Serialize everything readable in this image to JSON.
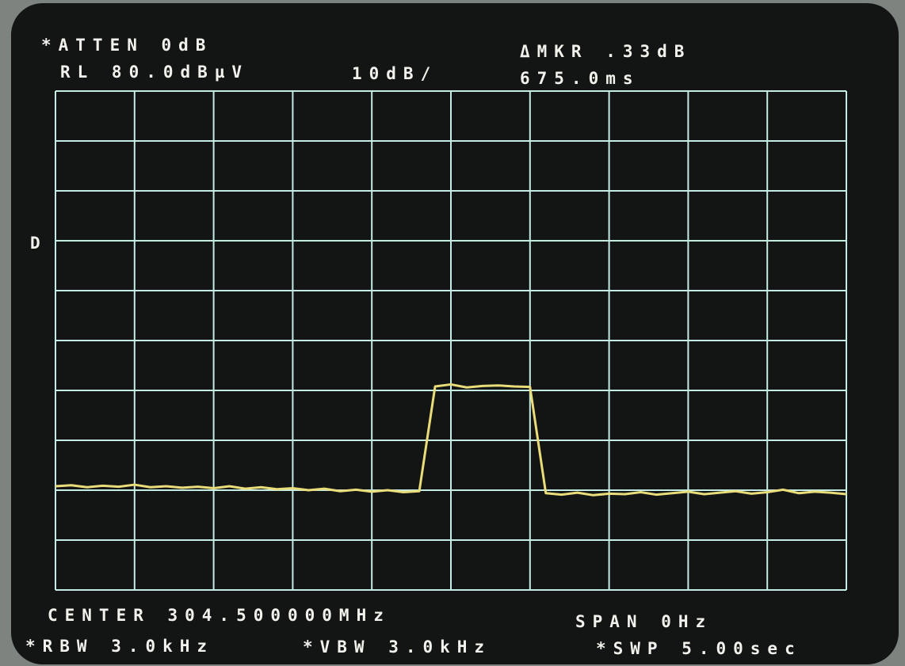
{
  "chart_data": {
    "type": "line",
    "header": {
      "atten": "*ATTEN 0dB",
      "ref_level": "RL 80.0dBµV",
      "scale": "10dB/",
      "marker": "ΔMKR .33dB",
      "marker_time": "675.0ms",
      "detector": "D"
    },
    "footer": {
      "center": "CENTER 304.500000MHz",
      "span": "SPAN 0Hz",
      "rbw": "*RBW 3.0kHz",
      "vbw": "*VBW 3.0kHz",
      "sweep": "*SWP 5.00sec"
    },
    "x": [
      0,
      0.1,
      0.2,
      0.3,
      0.4,
      0.5,
      0.6,
      0.7,
      0.8,
      0.9,
      1.0,
      1.1,
      1.2,
      1.3,
      1.4,
      1.5,
      1.6,
      1.7,
      1.8,
      1.9,
      2.0,
      2.1,
      2.2,
      2.3,
      2.4,
      2.5,
      2.6,
      2.7,
      2.8,
      2.9,
      3.0,
      3.1,
      3.2,
      3.3,
      3.4,
      3.5,
      3.6,
      3.7,
      3.8,
      3.9,
      4.0,
      4.1,
      4.2,
      4.3,
      4.4,
      4.5,
      4.6,
      4.7,
      4.8,
      4.9,
      5.0
    ],
    "series": [
      {
        "color": "#e9dc7a",
        "values": [
          0.8,
          1.0,
          0.6,
          0.9,
          0.7,
          1.1,
          0.6,
          0.8,
          0.5,
          0.7,
          0.4,
          0.8,
          0.3,
          0.6,
          0.2,
          0.4,
          0.0,
          0.3,
          -0.2,
          0.1,
          -0.3,
          0.0,
          -0.4,
          -0.2,
          20.8,
          21.2,
          20.6,
          20.9,
          21.0,
          20.8,
          20.7,
          -0.6,
          -0.9,
          -0.5,
          -1.0,
          -0.7,
          -0.8,
          -0.4,
          -0.9,
          -0.6,
          -0.3,
          -0.8,
          -0.5,
          -0.2,
          -0.7,
          -0.4,
          0.1,
          -0.6,
          -0.3,
          -0.5,
          -0.8
        ]
      }
    ],
    "xlim": [
      0,
      5
    ],
    "xticks": [
      0,
      0.5,
      1,
      1.5,
      2,
      2.5,
      3,
      3.5,
      4,
      4.5,
      5
    ],
    "ylim": [
      -20,
      80
    ],
    "yticks": [
      -20,
      -10,
      0,
      10,
      20,
      30,
      40,
      50,
      60,
      70,
      80
    ],
    "grid": true,
    "grid_color": "#c4ece4"
  }
}
